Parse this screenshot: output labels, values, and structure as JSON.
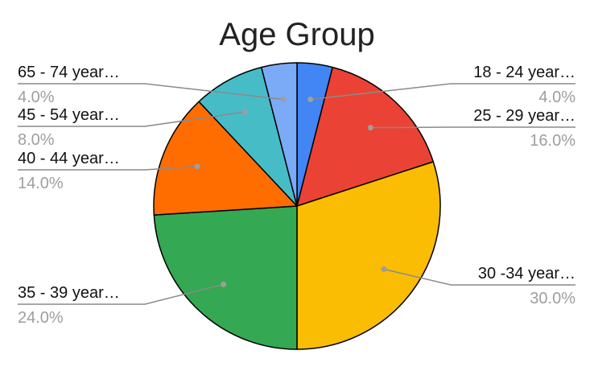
{
  "chart_data": {
    "type": "pie",
    "title": "Age Group",
    "slices": [
      {
        "label": "18 - 24 year…",
        "value": 4.0,
        "percent_label": "4.0%",
        "color": "#4285f4"
      },
      {
        "label": "25 - 29 year…",
        "value": 16.0,
        "percent_label": "16.0%",
        "color": "#ea4335"
      },
      {
        "label": "30 -34 year…",
        "value": 30.0,
        "percent_label": "30.0%",
        "color": "#fbbc04"
      },
      {
        "label": "35 - 39 year…",
        "value": 24.0,
        "percent_label": "24.0%",
        "color": "#34a853"
      },
      {
        "label": "40 - 44 year…",
        "value": 14.0,
        "percent_label": "14.0%",
        "color": "#ff6d01"
      },
      {
        "label": "45 - 54 year…",
        "value": 8.0,
        "percent_label": "8.0%",
        "color": "#46bdc6"
      },
      {
        "label": "65 - 74 year…",
        "value": 4.0,
        "percent_label": "4.0%",
        "color": "#7baaf7"
      }
    ],
    "start_angle": "12 o'clock",
    "direction": "clockwise",
    "legend": "none",
    "labels": "outside with leader lines"
  }
}
